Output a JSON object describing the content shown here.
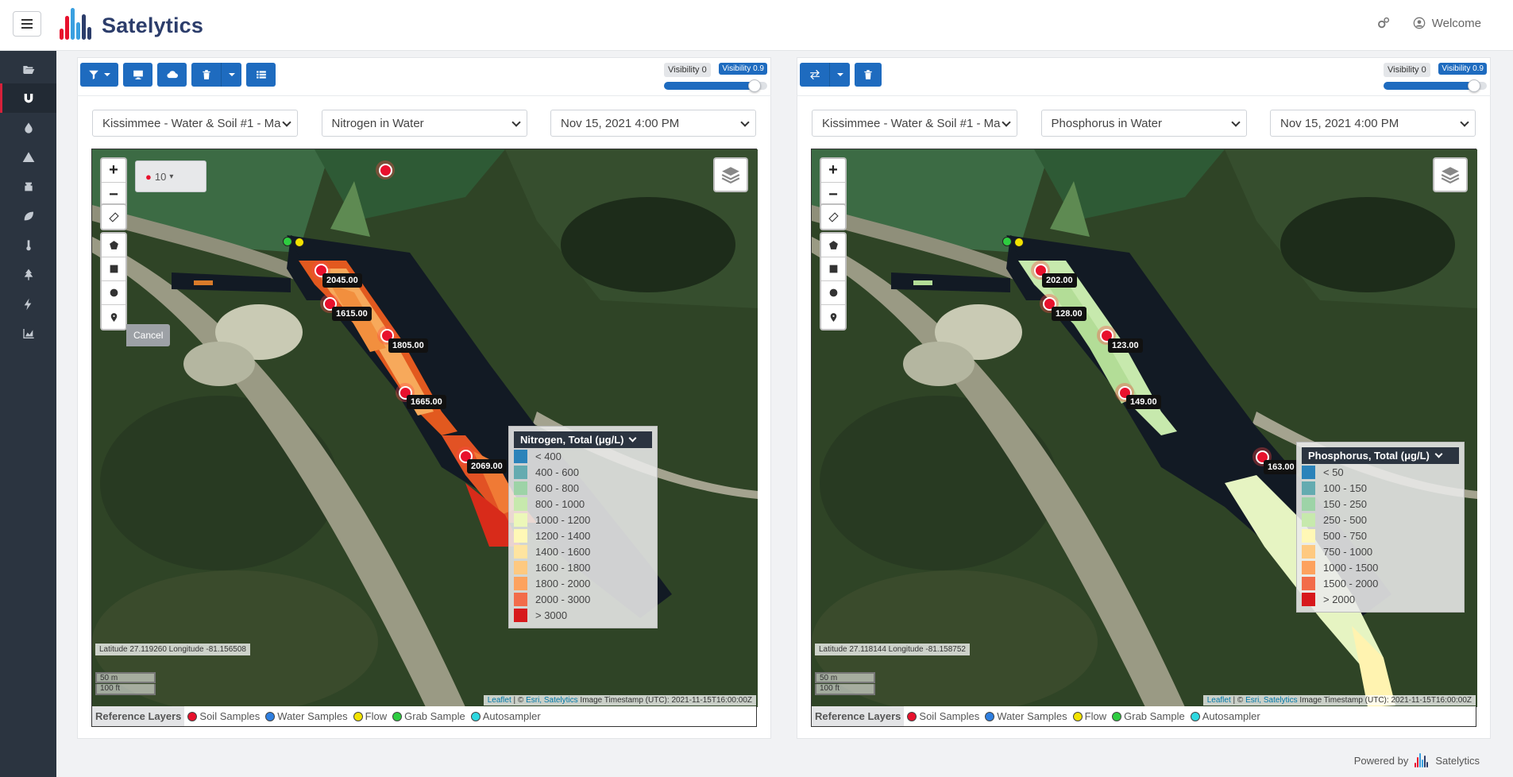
{
  "app": {
    "logo_text": "Satelytics",
    "welcome": "Welcome",
    "footer_text": "Powered by",
    "footer_brand": "Satelytics"
  },
  "colors": {
    "primary": "#1e6bbf",
    "sidebar": "#2b3440",
    "accent": "#d6213a"
  },
  "sidebar": {
    "items": [
      {
        "icon": "folder-open-icon"
      },
      {
        "icon": "magnet-icon",
        "active": true
      },
      {
        "icon": "droplet-icon"
      },
      {
        "icon": "warning-icon"
      },
      {
        "icon": "oil-barrel-icon"
      },
      {
        "icon": "leaf-icon"
      },
      {
        "icon": "thermometer-icon"
      },
      {
        "icon": "tree-icon"
      },
      {
        "icon": "bolt-icon"
      },
      {
        "icon": "area-chart-icon"
      }
    ]
  },
  "left": {
    "visibility_min": "Visibility 0",
    "visibility_max": "Visibility 0.9",
    "visibility_value": 0.9,
    "site": "Kissimmee - Water & Soil #1 - Ma",
    "parameter": "Nitrogen in Water",
    "datetime": "Nov 15, 2021 4:00 PM",
    "zoom": "10",
    "cancel": "Cancel",
    "coords": "Latitude 27.119260 Longitude -81.156508",
    "scale_m": "50 m",
    "scale_ft": "100 ft",
    "attr_leaflet": "Leaflet",
    "attr_sep": " | © ",
    "attr_esri": "Esri, Satelytics",
    "attr_ts": " Image Timestamp (UTC): 2021-11-15T16:00:00Z",
    "markers": [
      "2045.00",
      "1615.00",
      "1805.00",
      "1665.00",
      "2069.00"
    ],
    "legend": {
      "title": "Nitrogen, Total (μg/L)",
      "rows": [
        {
          "label": "< 400",
          "color": "#2b83ba"
        },
        {
          "label": "400 - 600",
          "color": "#64abb0"
        },
        {
          "label": "600 - 800",
          "color": "#9dd3a7"
        },
        {
          "label": "800 - 1000",
          "color": "#c7e9ad"
        },
        {
          "label": "1000 - 1200",
          "color": "#ecf7b9"
        },
        {
          "label": "1200 - 1400",
          "color": "#fff8b6"
        },
        {
          "label": "1400 - 1600",
          "color": "#fee4a0"
        },
        {
          "label": "1600 - 1800",
          "color": "#fec980"
        },
        {
          "label": "1800 - 2000",
          "color": "#fda25e"
        },
        {
          "label": "2000 - 3000",
          "color": "#f26c4a"
        },
        {
          "label": "> 3000",
          "color": "#d7191c"
        }
      ]
    }
  },
  "right": {
    "visibility_min": "Visibility 0",
    "visibility_max": "Visibility 0.9",
    "visibility_value": 0.9,
    "site": "Kissimmee - Water & Soil #1 - Ma",
    "parameter": "Phosphorus in Water",
    "datetime": "Nov 15, 2021 4:00 PM",
    "coords": "Latitude 27.118144 Longitude -81.158752",
    "scale_m": "50 m",
    "scale_ft": "100 ft",
    "attr_leaflet": "Leaflet",
    "attr_sep": " | © ",
    "attr_esri": "Esri, Satelytics",
    "attr_ts": " Image Timestamp (UTC): 2021-11-15T16:00:00Z",
    "markers": [
      "202.00",
      "128.00",
      "123.00",
      "149.00",
      "163.00"
    ],
    "legend": {
      "title": "Phosphorus, Total (μg/L)",
      "rows": [
        {
          "label": "< 50",
          "color": "#2b83ba"
        },
        {
          "label": "100 - 150",
          "color": "#64abb0"
        },
        {
          "label": "150 - 250",
          "color": "#9dd3a7"
        },
        {
          "label": "250 - 500",
          "color": "#c7e9ad"
        },
        {
          "label": "500 - 750",
          "color": "#fff8b6"
        },
        {
          "label": "750 - 1000",
          "color": "#fec980"
        },
        {
          "label": "1000 - 1500",
          "color": "#fda25e"
        },
        {
          "label": "1500 - 2000",
          "color": "#f26c4a"
        },
        {
          "label": "> 2000",
          "color": "#d7191c"
        }
      ]
    }
  },
  "reference_layers": {
    "title": "Reference Layers",
    "items": [
      {
        "label": "Soil Samples",
        "color": "#e8112d"
      },
      {
        "label": "Water Samples",
        "color": "#2f7fe0"
      },
      {
        "label": "Flow",
        "color": "#f2e200"
      },
      {
        "label": "Grab Sample",
        "color": "#2ecc40"
      },
      {
        "label": "Autosampler",
        "color": "#2ed8e0"
      }
    ]
  }
}
